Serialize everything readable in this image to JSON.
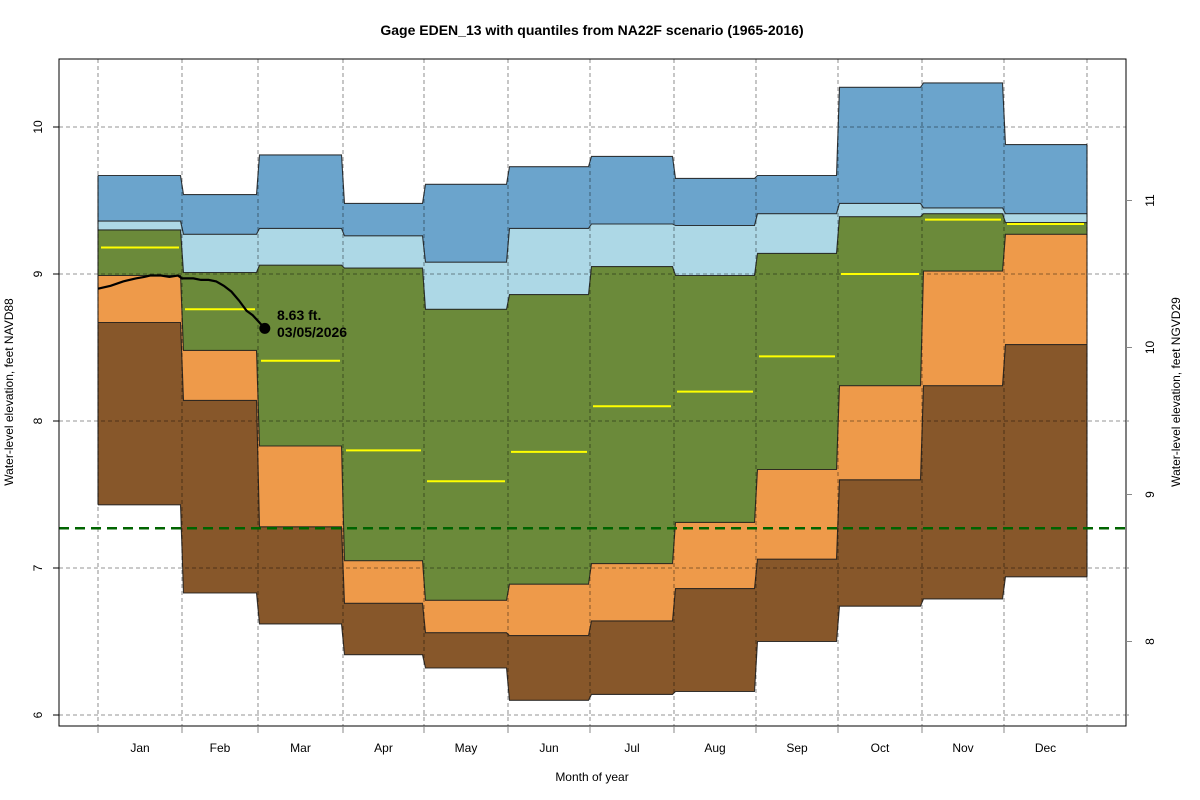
{
  "chart_data": {
    "type": "area",
    "title": "Gage EDEN_13 with quantiles from NA22F scenario (1965-2016)",
    "xlabel": "Month of year",
    "ylabel": "Water-level elevation, feet NAVD88",
    "ylabel_right": "Water-level elevation, feet NGVD29",
    "ylim": [
      5.92,
      10.45
    ],
    "yticks": [
      6,
      7,
      8,
      9,
      10
    ],
    "yticks_right": [
      8,
      9,
      10,
      11
    ],
    "right_axis_offset": 1.5,
    "grid": true,
    "categories": [
      "Jan",
      "Feb",
      "Mar",
      "Apr",
      "May",
      "Jun",
      "Jul",
      "Aug",
      "Sep",
      "Oct",
      "Nov",
      "Dec"
    ],
    "quantile_bounds": {
      "max": [
        9.67,
        9.54,
        9.81,
        9.48,
        9.61,
        9.73,
        9.8,
        9.65,
        9.67,
        10.27,
        10.3,
        9.88
      ],
      "q90": [
        9.36,
        9.27,
        9.31,
        9.26,
        9.08,
        9.31,
        9.34,
        9.33,
        9.41,
        9.48,
        9.45,
        9.41
      ],
      "q75": [
        9.3,
        9.01,
        9.06,
        9.04,
        8.76,
        8.86,
        9.05,
        8.99,
        9.14,
        9.39,
        9.41,
        9.35
      ],
      "q25": [
        8.99,
        8.48,
        7.83,
        7.05,
        6.78,
        6.89,
        7.03,
        7.31,
        7.67,
        8.24,
        9.02,
        9.27
      ],
      "q10": [
        8.67,
        8.14,
        7.28,
        6.76,
        6.56,
        6.54,
        6.64,
        6.86,
        7.06,
        7.6,
        8.24,
        8.52
      ],
      "min": [
        7.43,
        6.83,
        6.62,
        6.41,
        6.32,
        6.1,
        6.14,
        6.16,
        6.5,
        6.74,
        6.79,
        6.94
      ]
    },
    "median": [
      9.18,
      8.76,
      8.41,
      7.8,
      7.59,
      7.79,
      8.1,
      8.2,
      8.44,
      9.0,
      9.37,
      9.34
    ],
    "band_colors": {
      "max_q90": "#6ba4cc",
      "q90_q75": "#add8e6",
      "q75_q25": "#6b8a3a",
      "q25_q10": "#ee9a4a",
      "q10_min": "#87572a"
    },
    "median_color": "#ffff00",
    "reference_line": {
      "value": 7.27,
      "color": "#006400",
      "style": "dashed"
    },
    "observed_series": {
      "color": "#000000",
      "points": [
        [
          0.0,
          8.9
        ],
        [
          0.15,
          8.92
        ],
        [
          0.3,
          8.95
        ],
        [
          0.45,
          8.97
        ],
        [
          0.55,
          8.98
        ],
        [
          0.62,
          8.99
        ],
        [
          0.75,
          8.99
        ],
        [
          0.85,
          8.98
        ],
        [
          0.95,
          8.99
        ],
        [
          1.0,
          8.97
        ],
        [
          1.05,
          8.97
        ],
        [
          1.15,
          8.97
        ],
        [
          1.25,
          8.96
        ],
        [
          1.35,
          8.96
        ],
        [
          1.45,
          8.95
        ],
        [
          1.55,
          8.92
        ],
        [
          1.65,
          8.88
        ],
        [
          1.75,
          8.82
        ],
        [
          1.85,
          8.75
        ],
        [
          1.93,
          8.72
        ],
        [
          2.0,
          8.68
        ],
        [
          2.08,
          8.63
        ]
      ],
      "last_point_label": "8.63 ft.",
      "last_point_date": "03/05/2026",
      "last_value": 8.63
    }
  }
}
